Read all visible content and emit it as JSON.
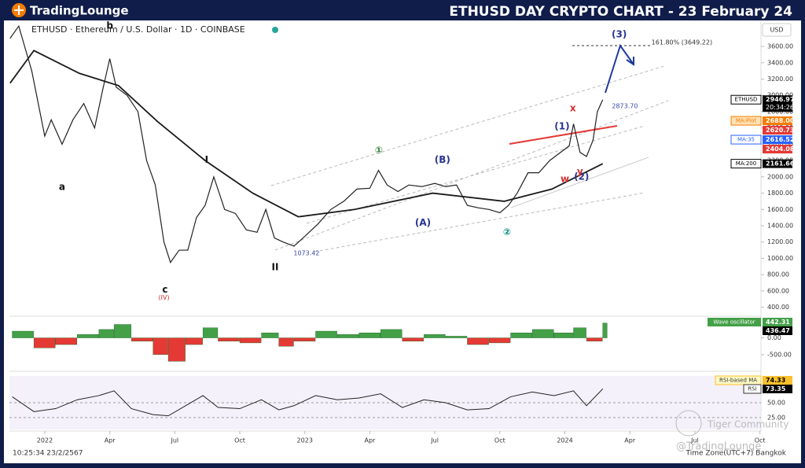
{
  "header": {
    "brand": "TradingLounge",
    "title": "ETHUSD DAY CRYPTO CHART - 23 February 24"
  },
  "symbol_line": "ETHUSD · Ethereum / U.S. Dollar · 1D · COINBASE",
  "currency": "USD",
  "footer_time": "10:25:34 23/2/2567",
  "footer_timezone": "Time Zone(UTC+7) Bangkok",
  "watermarks": [
    "Tiger Community",
    "@TradingLounge"
  ],
  "chart_data": {
    "type": "line",
    "xlim": [
      -1.63,
      33.05
    ],
    "xticks": [
      {
        "value": 0,
        "label": "2022"
      },
      {
        "value": 3,
        "label": "Apr"
      },
      {
        "value": 6,
        "label": "Jul"
      },
      {
        "value": 9,
        "label": "Oct"
      },
      {
        "value": 12,
        "label": "2023"
      },
      {
        "value": 15,
        "label": "Apr"
      },
      {
        "value": 18,
        "label": "Jul"
      },
      {
        "value": 21,
        "label": "Oct"
      },
      {
        "value": 24,
        "label": "2024"
      },
      {
        "value": 27,
        "label": "Apr"
      },
      {
        "value": 30,
        "label": "Jul"
      },
      {
        "value": 33,
        "label": "Oct"
      }
    ],
    "ylim": [
      290,
      3900
    ],
    "yticks": [
      {
        "value": 400,
        "label": "400.00"
      },
      {
        "value": 600,
        "label": "600.00"
      },
      {
        "value": 800,
        "label": "800.00"
      },
      {
        "value": 1000,
        "label": "1000.00"
      },
      {
        "value": 1200,
        "label": "1200.00"
      },
      {
        "value": 1400,
        "label": "1400.00"
      },
      {
        "value": 1600,
        "label": "1600.00"
      },
      {
        "value": 1800,
        "label": "1800.00"
      },
      {
        "value": 2000,
        "label": "2000.00"
      },
      {
        "value": 2200,
        "label": "2200.00"
      },
      {
        "value": 2400,
        "label": "2400.00"
      },
      {
        "value": 2600,
        "label": "2600.00"
      },
      {
        "value": 2800,
        "label": "2800.00"
      },
      {
        "value": 3000,
        "label": "3000.00"
      },
      {
        "value": 3200,
        "label": "3200.00"
      },
      {
        "value": 3400,
        "label": "3400.00"
      },
      {
        "value": 3600,
        "label": "3600.00"
      }
    ],
    "series": [
      {
        "name": "ETHUSD",
        "color": "#222222",
        "x": [
          -1.6,
          -1.2,
          -0.6,
          0,
          0.3,
          0.8,
          1.3,
          1.8,
          2.3,
          2.7,
          3.0,
          3.3,
          3.8,
          4.3,
          4.7,
          5.1,
          5.5,
          5.8,
          6.2,
          6.6,
          7.0,
          7.4,
          7.8,
          8.3,
          8.8,
          9.3,
          9.8,
          10.2,
          10.6,
          11.0,
          11.5,
          12.0,
          12.6,
          13.2,
          13.8,
          14.4,
          15.0,
          15.4,
          15.8,
          16.3,
          16.8,
          17.4,
          18.0,
          18.5,
          19.0,
          19.5,
          20.0,
          20.5,
          21.0,
          21.4,
          21.8,
          22.3,
          22.8,
          23.3,
          23.8,
          24.2,
          24.4,
          24.7,
          25.0,
          25.3,
          25.5,
          25.75
        ],
        "values": [
          3700,
          3850,
          3300,
          2500,
          2700,
          2400,
          2700,
          2900,
          2600,
          3100,
          3450,
          3100,
          3000,
          2800,
          2200,
          1900,
          1200,
          950,
          1100,
          1100,
          1500,
          1650,
          2000,
          1600,
          1550,
          1350,
          1320,
          1600,
          1250,
          1200,
          1150,
          1270,
          1420,
          1600,
          1700,
          1850,
          1860,
          2080,
          1900,
          1820,
          1900,
          1880,
          1920,
          1880,
          1900,
          1650,
          1620,
          1600,
          1560,
          1650,
          1800,
          2050,
          2050,
          2200,
          2300,
          2380,
          2650,
          2300,
          2250,
          2450,
          2800,
          2946.97
        ]
      },
      {
        "name": "MA:200",
        "color": "#1a1a1a",
        "x": [
          -1.6,
          -0.5,
          1.6,
          3.4,
          5.2,
          7.4,
          9.6,
          11.7,
          14.3,
          17.9,
          21.2,
          23.4,
          25.75
        ],
        "values": [
          3150,
          3550,
          3270,
          3120,
          2680,
          2200,
          1800,
          1510,
          1600,
          1800,
          1700,
          1850,
          2161.66
        ]
      }
    ],
    "price_tags": [
      {
        "name": "ETHUSD",
        "value": 2946.97,
        "label": "2946.97",
        "sub": "20:34:26",
        "color": "#000000"
      },
      {
        "name": "MA:Plot",
        "value": 2688.0,
        "label": "2688.00",
        "color": "#f57c00"
      },
      {
        "value": 2620.73,
        "label": "2620.73",
        "color": "#e53935"
      },
      {
        "name": "MA:35",
        "value": 2616.52,
        "label": "2616.52",
        "color": "#2962ff"
      },
      {
        "value": 2404.08,
        "label": "2404.08",
        "color": "#e53935"
      },
      {
        "name": "MA:200",
        "value": 2161.66,
        "label": "2161.66",
        "color": "#000000"
      }
    ],
    "annotations": [
      {
        "text": "a",
        "x": 0.8,
        "y": 1873,
        "color": "#111111"
      },
      {
        "text": "b",
        "x": 3.0,
        "y": 3854,
        "color": "#111111"
      },
      {
        "text": "c",
        "x": 5.55,
        "y": 615,
        "color": "#111111"
      },
      {
        "text": "(IV)",
        "x": 5.5,
        "y": 517,
        "color": "#d32f2f"
      },
      {
        "text": "I",
        "x": 7.47,
        "y": 2205,
        "color": "#111111"
      },
      {
        "text": "II",
        "x": 10.63,
        "y": 888,
        "color": "#111111"
      },
      {
        "text": "①",
        "x": 15.42,
        "y": 2322,
        "color": "#2e7d32"
      },
      {
        "text": "(B)",
        "x": 18.35,
        "y": 2205,
        "color": "#283593"
      },
      {
        "text": "(A)",
        "x": 17.45,
        "y": 1434,
        "color": "#283593"
      },
      {
        "text": "②",
        "x": 21.33,
        "y": 1317,
        "color": "#00897b"
      },
      {
        "text": "(1)",
        "x": 23.87,
        "y": 2615,
        "color": "#283593"
      },
      {
        "text": "(2)",
        "x": 24.77,
        "y": 2000,
        "color": "#283593"
      },
      {
        "text": "x",
        "x": 24.37,
        "y": 2839,
        "color": "#d32f2f"
      },
      {
        "text": "w",
        "x": 24.0,
        "y": 1970,
        "color": "#d32f2f"
      },
      {
        "text": "y",
        "x": 24.7,
        "y": 2059,
        "color": "#d32f2f"
      },
      {
        "text": "(3)",
        "x": 26.51,
        "y": 3746,
        "color": "#283593"
      },
      {
        "text": "1073.42",
        "x": 12.08,
        "y": 1063,
        "color": "#3949ab"
      },
      {
        "text": "2873.70",
        "x": 26.77,
        "y": 2868,
        "color": "#3949ab"
      },
      {
        "text": "161.80% (3649.22)",
        "x": 29.4,
        "y": 3649.22,
        "color": "#333333"
      }
    ],
    "indicator_x": [
      -1.5,
      -0.5,
      0.5,
      1.5,
      2.5,
      3.2,
      4.0,
      5.0,
      5.7,
      6.5,
      7.3,
      8.0,
      9.0,
      10.0,
      10.8,
      11.5,
      12.5,
      13.5,
      14.5,
      15.5,
      16.5,
      17.5,
      18.5,
      19.5,
      20.5,
      21.5,
      22.5,
      23.5,
      24.4,
      25.0,
      25.75
    ],
    "oscillator": {
      "name": "Wave oscillator",
      "ylim": [
        -950,
        600
      ],
      "yticks": [
        {
          "value": 0,
          "label": "0.00"
        },
        {
          "value": -500,
          "label": "-500.00"
        }
      ],
      "values": [
        200,
        -300,
        -200,
        100,
        250,
        400,
        -100,
        -500,
        -700,
        -200,
        300,
        -100,
        -150,
        150,
        -250,
        -100,
        200,
        100,
        150,
        250,
        -100,
        100,
        50,
        -200,
        -150,
        150,
        250,
        150,
        300,
        -100,
        442.31
      ],
      "value_labels_tag": [
        "442.31",
        "436.47"
      ],
      "tag_values": [
        442.31,
        436.47
      ]
    },
    "rsi": {
      "name": "RSI",
      "ma_name": "RSI-based MA",
      "ylim": [
        5,
        95
      ],
      "yticks": [
        {
          "value": 50,
          "label": "50.00"
        },
        {
          "value": 25,
          "label": "25.00"
        }
      ],
      "values": [
        60,
        35,
        40,
        55,
        62,
        70,
        40,
        30,
        28,
        45,
        62,
        42,
        40,
        55,
        38,
        45,
        62,
        55,
        58,
        65,
        42,
        55,
        50,
        38,
        40,
        60,
        68,
        62,
        70,
        45,
        73.35
      ],
      "tag_values": [
        74.33,
        73.35
      ],
      "tag_labels": [
        "74.33",
        "73.35"
      ]
    }
  }
}
